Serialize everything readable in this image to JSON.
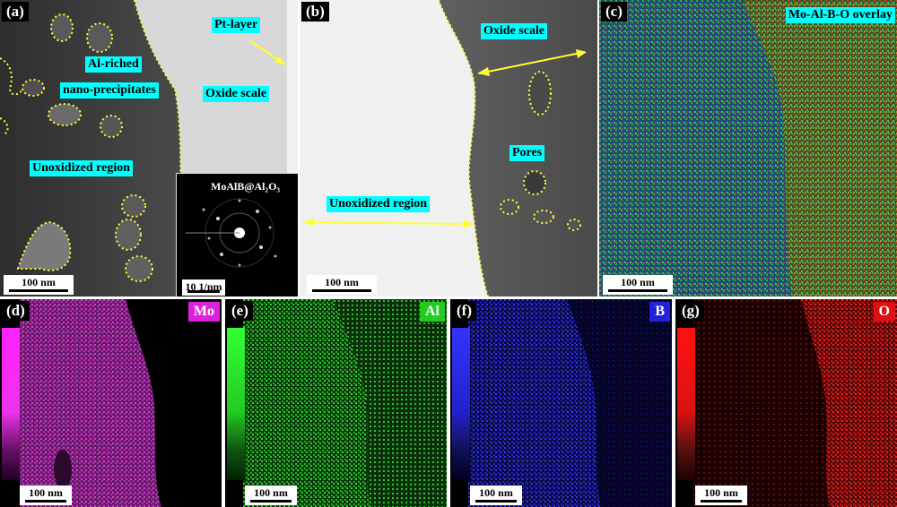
{
  "panels": {
    "a": {
      "label": "(a)",
      "pt_layer": "Pt-layer",
      "al_riched": "Al-riched",
      "nano_precipitates": "nano-precipitates",
      "oxide_scale": "Oxide scale",
      "unoxidized": "Unoxidized region",
      "inset_title": "MoAlB@Al₂O₃",
      "inset_scale": "10 1/nm",
      "scale": "100 nm"
    },
    "b": {
      "label": "(b)",
      "oxide_scale": "Oxide scale",
      "pores": "Pores",
      "unoxidized": "Unoxidized region",
      "scale": "100 nm"
    },
    "c": {
      "label": "(c)",
      "overlay": "Mo-Al-B-O overlay",
      "scale": "100 nm"
    },
    "d": {
      "label": "(d)",
      "element": "Mo",
      "color": "#e040e0",
      "scale": "100 nm"
    },
    "e": {
      "label": "(e)",
      "element": "Al",
      "color": "#22dd22",
      "scale": "100 nm"
    },
    "f": {
      "label": "(f)",
      "element": "B",
      "color": "#2222ee",
      "scale": "100 nm"
    },
    "g": {
      "label": "(g)",
      "element": "O",
      "color": "#ee1111",
      "scale": "100 nm"
    }
  }
}
